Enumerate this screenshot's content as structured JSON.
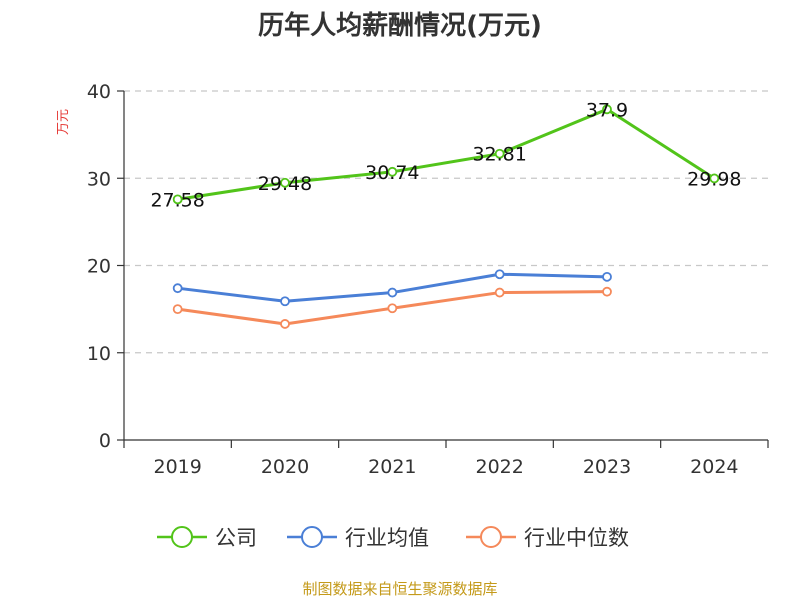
{
  "chart_data": {
    "type": "line",
    "title": "历年人均薪酬情况(万元)",
    "ylabel": "万元",
    "xlabel": "",
    "categories": [
      "2019",
      "2020",
      "2021",
      "2022",
      "2023",
      "2024"
    ],
    "ylim": [
      0,
      40
    ],
    "yticks": [
      0,
      10,
      20,
      30,
      40
    ],
    "grid": true,
    "legend_position": "bottom",
    "series": [
      {
        "name": "公司",
        "color": "#52c41a",
        "values": [
          27.58,
          29.48,
          30.74,
          32.81,
          37.9,
          29.98
        ],
        "labels": [
          "27.58",
          "29.48",
          "30.74",
          "32.81",
          "37.9",
          "29.98"
        ]
      },
      {
        "name": "行业均值",
        "color": "#4a7fd6",
        "values": [
          17.4,
          15.9,
          16.9,
          19.0,
          18.7,
          null
        ]
      },
      {
        "name": "行业中位数",
        "color": "#f5895a",
        "values": [
          15.0,
          13.3,
          15.1,
          16.9,
          17.0,
          null
        ]
      }
    ]
  },
  "source": "制图数据来自恒生聚源数据库"
}
